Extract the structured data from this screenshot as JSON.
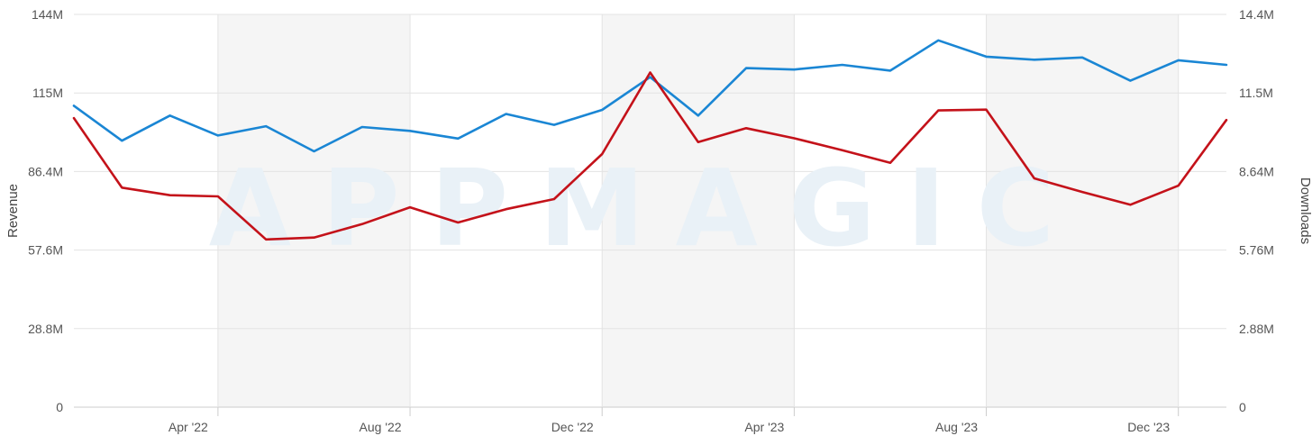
{
  "chart_data": {
    "type": "line",
    "watermark": "APPMAGIC",
    "x_tick_labels": [
      "Apr '22",
      "Aug '22",
      "Dec '22",
      "Apr '23",
      "Aug '23",
      "Dec '23"
    ],
    "months": [
      "2022-01",
      "2022-02",
      "2022-03",
      "2022-04",
      "2022-05",
      "2022-06",
      "2022-07",
      "2022-08",
      "2022-09",
      "2022-10",
      "2022-11",
      "2022-12",
      "2023-01",
      "2023-02",
      "2023-03",
      "2023-04",
      "2023-05",
      "2023-06",
      "2023-07",
      "2023-08",
      "2023-09",
      "2023-10",
      "2023-11",
      "2023-12",
      "2024-01"
    ],
    "shaded_bands": [
      [
        "2022-04",
        "2022-08"
      ],
      [
        "2022-12",
        "2023-04"
      ],
      [
        "2023-08",
        "2023-12"
      ]
    ],
    "left_axis": {
      "label": "Revenue",
      "ticks": [
        "0",
        "28.8M",
        "57.6M",
        "86.4M",
        "115M",
        "144M"
      ],
      "range": [
        0,
        144000000
      ]
    },
    "right_axis": {
      "label": "Downloads",
      "ticks": [
        "0",
        "2.88M",
        "5.76M",
        "8.64M",
        "11.5M",
        "14.4M"
      ],
      "range": [
        0,
        14400000
      ]
    },
    "series": [
      {
        "axis": "right",
        "color": "#1a86d4",
        "values": [
          11050000,
          9770000,
          10690000,
          9960000,
          10300000,
          9380000,
          10270000,
          10130000,
          9850000,
          10750000,
          10350000,
          10900000,
          12100000,
          10690000,
          12430000,
          12380000,
          12550000,
          12340000,
          13450000,
          12850000,
          12740000,
          12820000,
          11970000,
          12720000,
          12550000
        ]
      },
      {
        "axis": "left",
        "color": "#c4121a",
        "values": [
          106000000,
          80500000,
          77700000,
          77300000,
          61500000,
          62200000,
          67100000,
          73300000,
          67700000,
          72600000,
          76300000,
          92800000,
          122700000,
          97200000,
          102300000,
          98600000,
          94200000,
          89600000,
          108800000,
          109100000,
          83900000,
          78900000,
          74200000,
          81200000,
          105300000
        ]
      }
    ]
  }
}
